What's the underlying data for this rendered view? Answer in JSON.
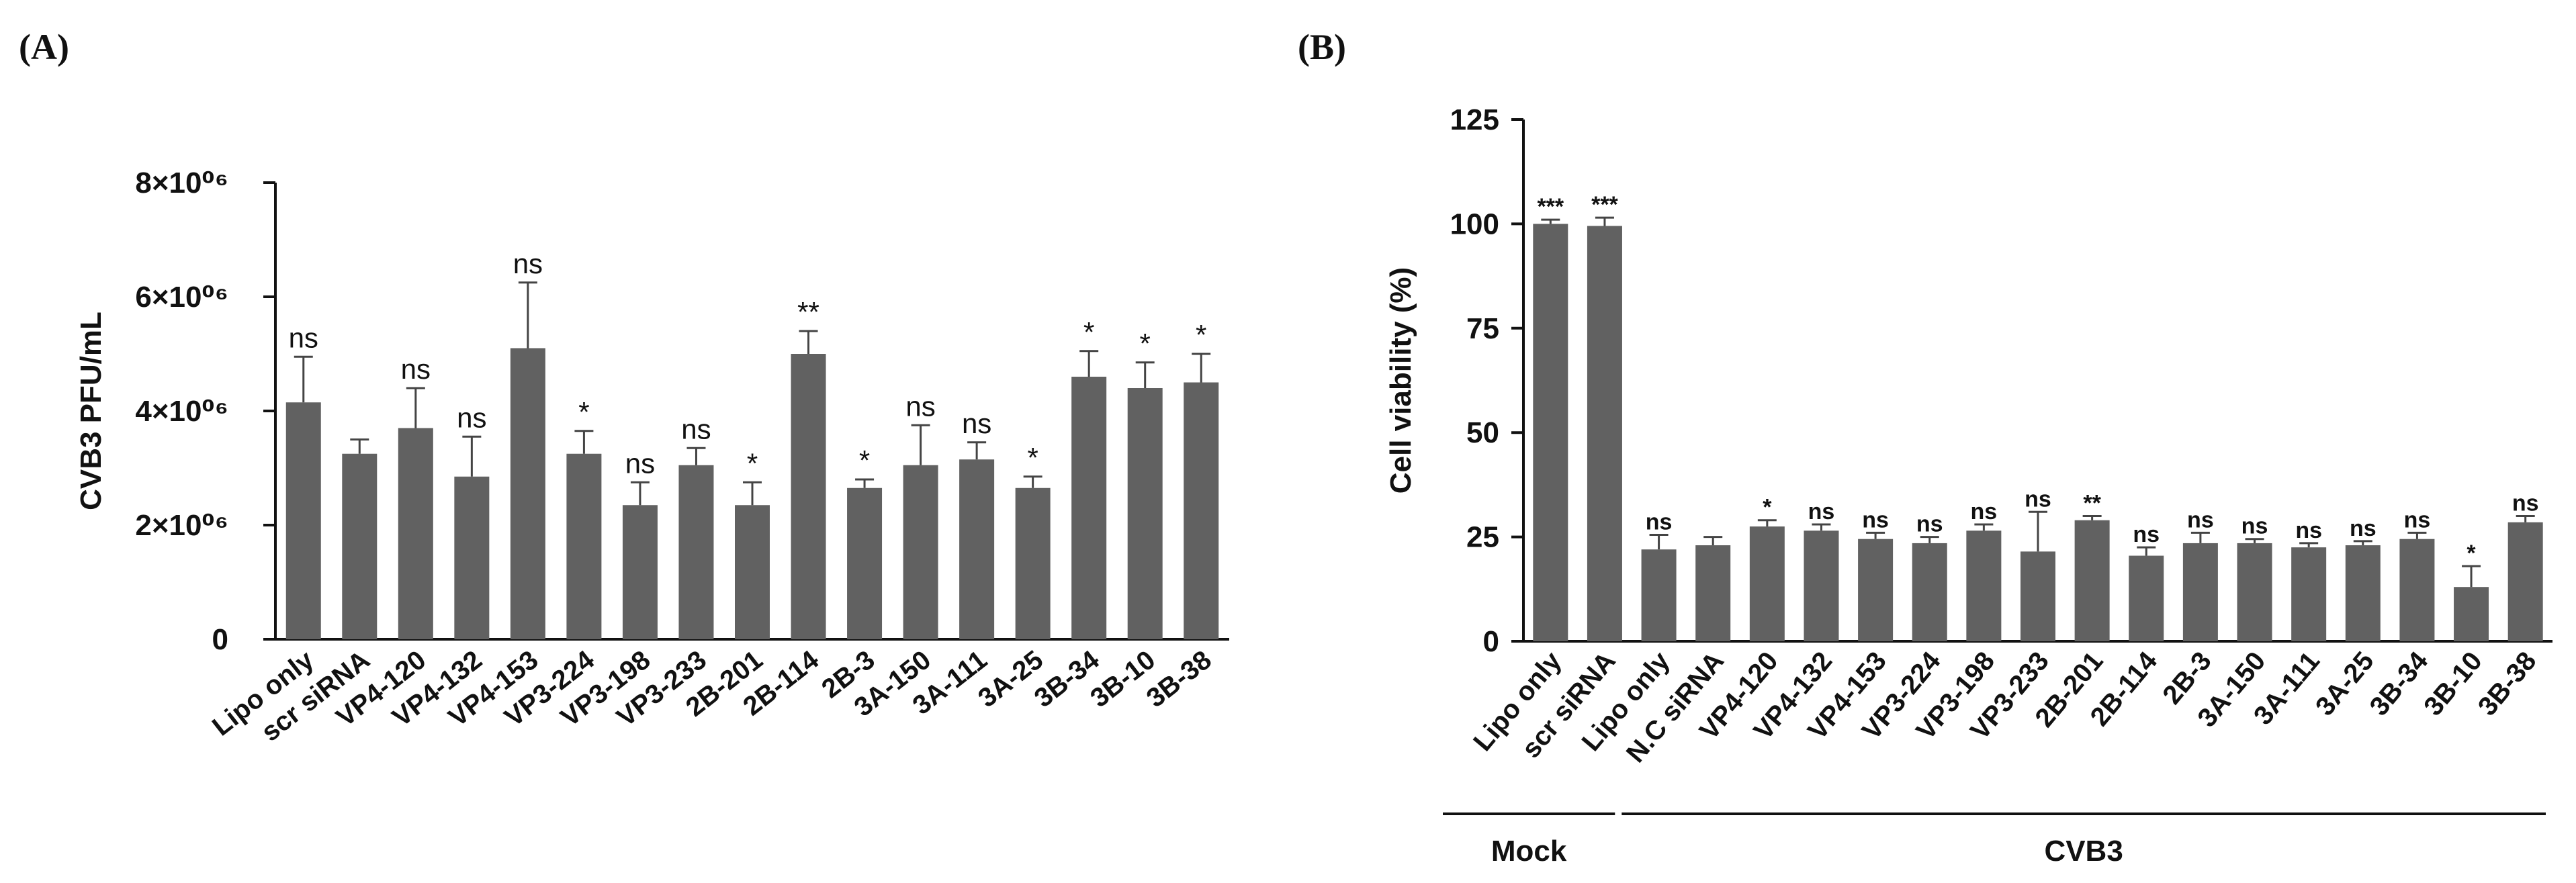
{
  "chart_data": [
    {
      "panel": "(A)",
      "type": "bar",
      "title": "",
      "xlabel": "",
      "ylabel": "CVB3 PFU/mL",
      "ylim": [
        0,
        8000000
      ],
      "yticks": [
        0,
        2000000,
        4000000,
        6000000,
        8000000
      ],
      "ytick_labels": [
        "0",
        "2×10⁰⁶",
        "4×10⁰⁶",
        "6×10⁰⁶",
        "8×10⁰⁶"
      ],
      "categories": [
        "Lipo only",
        "scr siRNA",
        "VP4-120",
        "VP4-132",
        "VP4-153",
        "VP3-224",
        "VP3-198",
        "VP3-233",
        "2B-201",
        "2B-114",
        "2B-3",
        "3A-150",
        "3A-111",
        "3A-25",
        "3B-34",
        "3B-10",
        "3B-38"
      ],
      "values": [
        4150000,
        3250000,
        3700000,
        2850000,
        5100000,
        3250000,
        2350000,
        3050000,
        2350000,
        5000000,
        2650000,
        3050000,
        3150000,
        2650000,
        4600000,
        4400000,
        4500000
      ],
      "errors": [
        800000,
        250000,
        700000,
        700000,
        1150000,
        400000,
        400000,
        300000,
        400000,
        400000,
        150000,
        700000,
        300000,
        200000,
        450000,
        450000,
        500000
      ],
      "significance": [
        "ns",
        "",
        "ns",
        "ns",
        "ns",
        "*",
        "ns",
        "ns",
        "*",
        "**",
        "*",
        "ns",
        "ns",
        "*",
        "*",
        "*",
        "*"
      ]
    },
    {
      "panel": "(B)",
      "type": "bar",
      "title": "",
      "xlabel": "",
      "ylabel": "Cell viability (%)",
      "ylim": [
        0,
        125
      ],
      "yticks": [
        0,
        25,
        50,
        75,
        100,
        125
      ],
      "ytick_labels": [
        "0",
        "25",
        "50",
        "75",
        "100",
        "125"
      ],
      "categories": [
        "Lipo only",
        "scr siRNA",
        "Lipo only",
        "N.C siRNA",
        "VP4-120",
        "VP4-132",
        "VP4-153",
        "VP3-224",
        "VP3-198",
        "VP3-233",
        "2B-201",
        "2B-114",
        "2B-3",
        "3A-150",
        "3A-111",
        "3A-25",
        "3B-34",
        "3B-10",
        "3B-38"
      ],
      "values": [
        100,
        99.5,
        22,
        23,
        27.5,
        26.5,
        24.5,
        23.5,
        26.5,
        21.5,
        29,
        20.5,
        23.5,
        23.5,
        22.5,
        23,
        24.5,
        13,
        28.5
      ],
      "errors": [
        1,
        2,
        3.5,
        2,
        1.5,
        1.5,
        1.5,
        1.5,
        1.5,
        9.5,
        1,
        2,
        2.5,
        1,
        1,
        1,
        1.5,
        5,
        1.5
      ],
      "significance": [
        "***",
        "***",
        "ns",
        "",
        "*",
        "ns",
        "ns",
        "ns",
        "ns",
        "ns",
        "**",
        "ns",
        "ns",
        "ns",
        "ns",
        "ns",
        "ns",
        "*",
        "ns"
      ],
      "groups": [
        {
          "label": "Mock",
          "start": 0,
          "end": 1
        },
        {
          "label": "CVB3",
          "start": 2,
          "end": 18
        }
      ]
    }
  ]
}
